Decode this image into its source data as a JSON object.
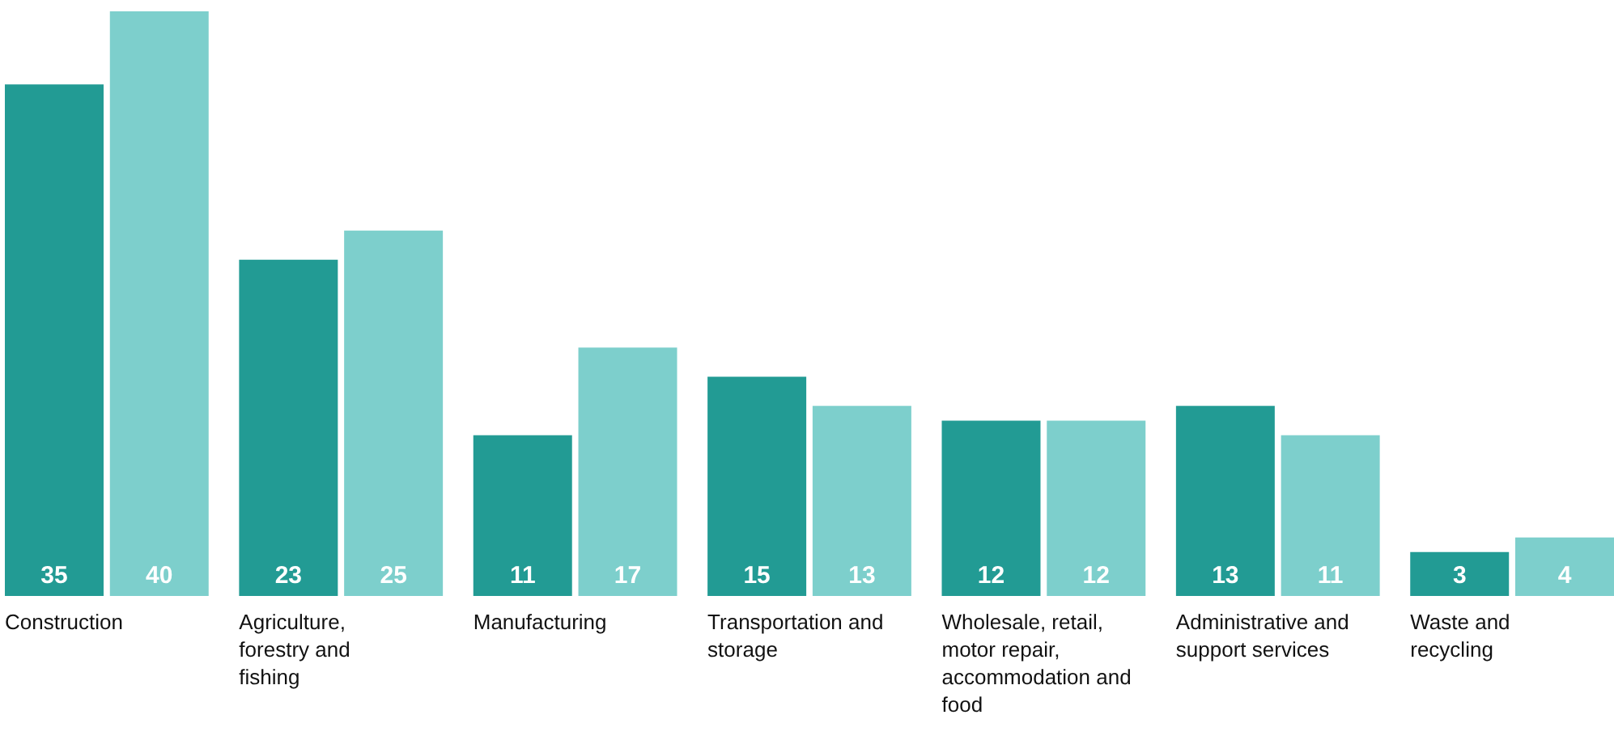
{
  "chart_data": {
    "type": "bar",
    "categories": [
      "Construction",
      "Agriculture, forestry and fishing",
      "Manufacturing",
      "Transportation and storage",
      "Wholesale, retail, motor repair, accommodation and food",
      "Administrative and support services",
      "Waste and recycling"
    ],
    "series": [
      {
        "color": "#229b94",
        "values": [
          35,
          23,
          11,
          15,
          12,
          13,
          3
        ]
      },
      {
        "color": "#7dcfcc",
        "values": [
          40,
          25,
          17,
          13,
          12,
          11,
          4
        ]
      }
    ],
    "data_labels": true
  }
}
